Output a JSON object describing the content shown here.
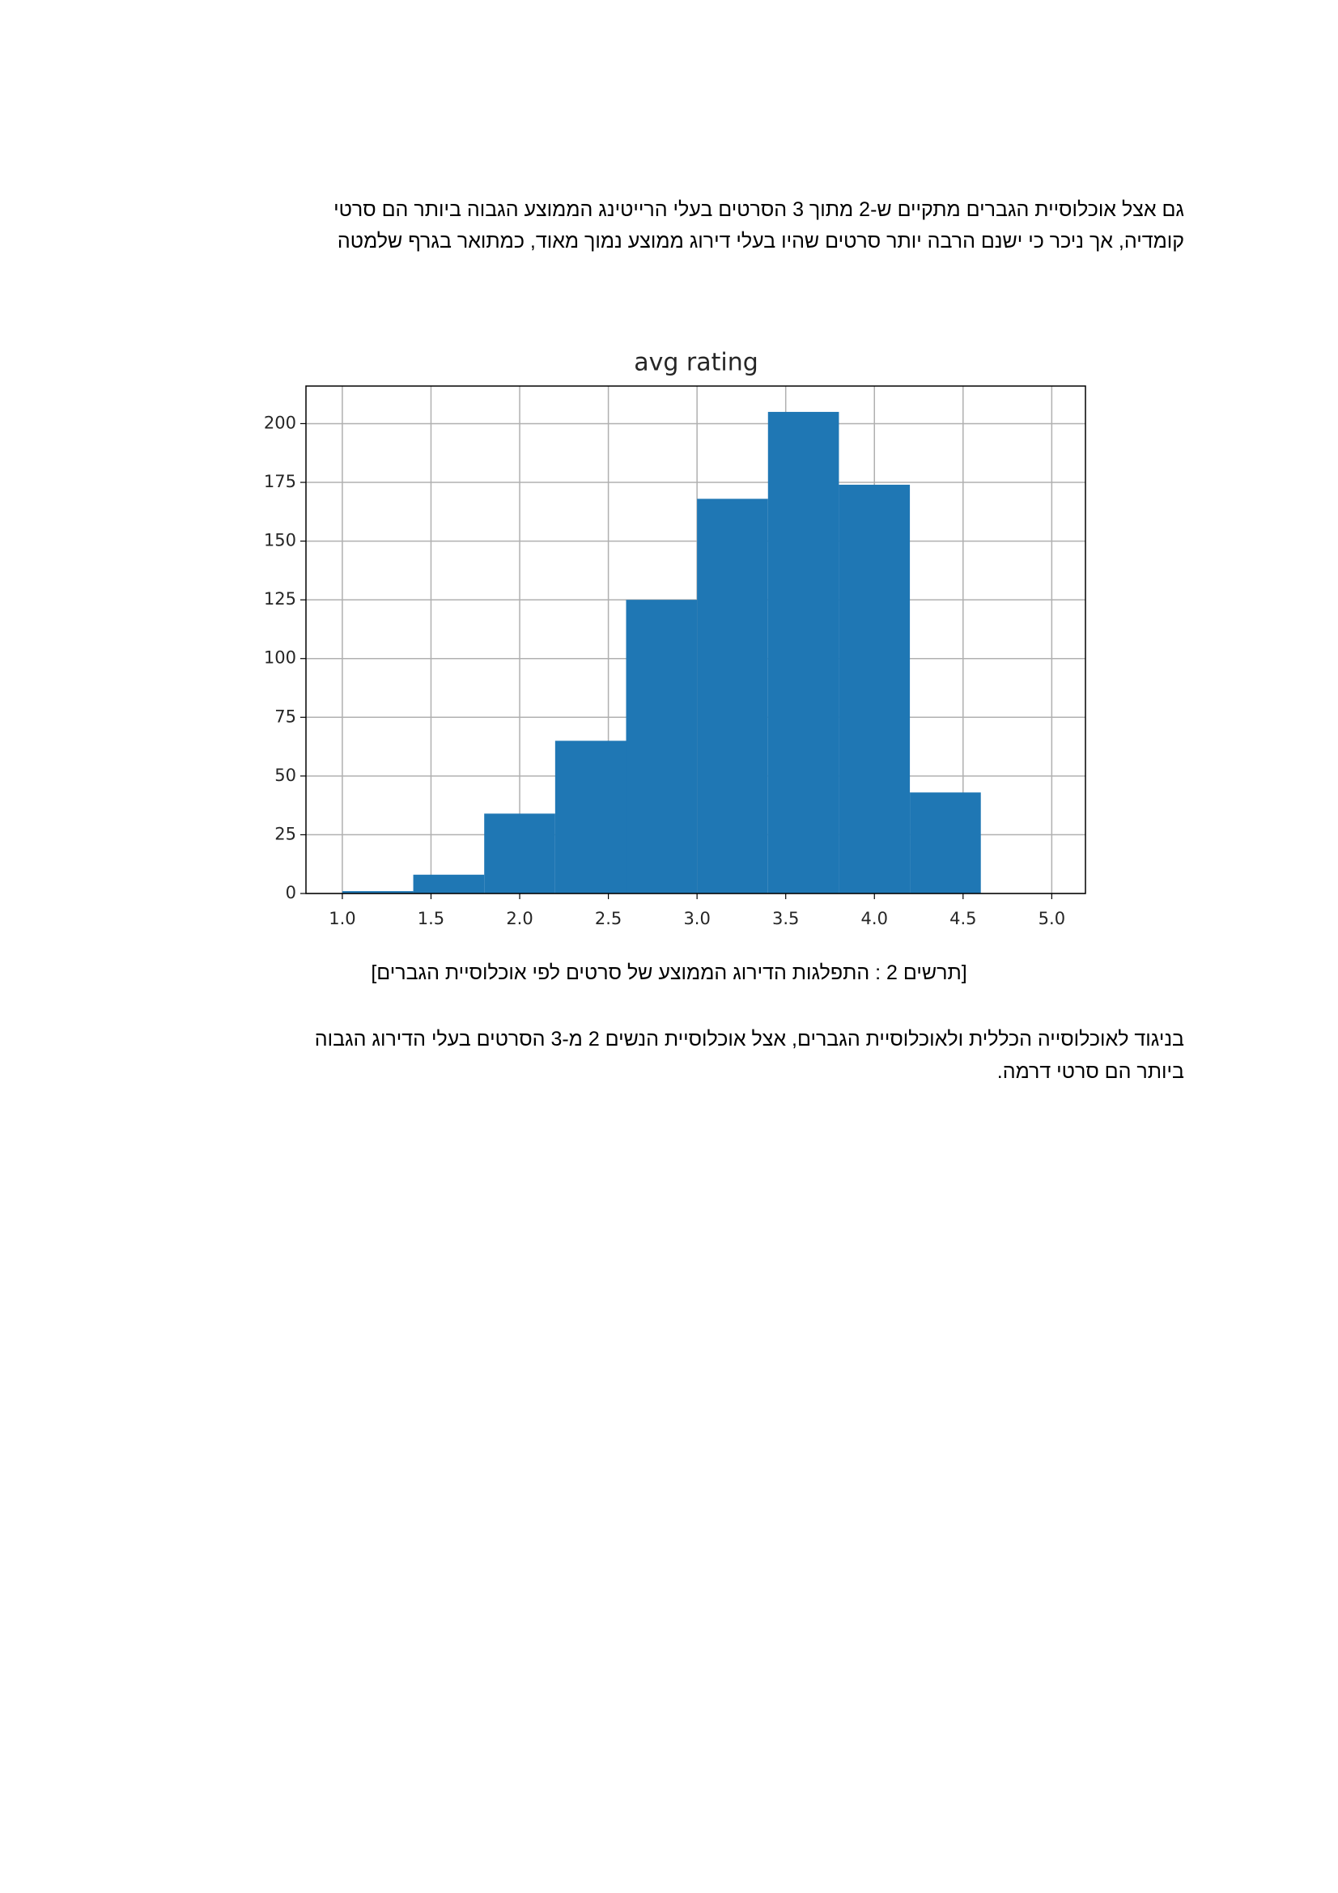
{
  "paragraphs": [
    [
      "גם אצל אוכלוסיית הגברים מתקיים ש-2 מתוך 3 הסרטים בעלי הרייטינג הממוצע הגבוה ביותר הם סרטי",
      "קומדיה, אך ניכר כי ישנם הרבה יותר סרטים שהיו בעלי דירוג ממוצע נמוך מאוד, כמתואר בגרף שלמטה"
    ],
    [
      "בניגוד לאוכלוסייה הכללית ולאוכלוסיית הגברים, אצל אוכלוסיית הנשים 2 מ-3 הסרטים בעלי הדירוג הגבוה",
      "ביותר הם סרטי דרמה."
    ]
  ],
  "caption": "[תרשים 2 : התפלגות הדירוג הממוצע של סרטים לפי אוכלוסיית הגברים]",
  "chart_data": {
    "type": "histogram",
    "title": "avg rating",
    "bins": [
      1.0,
      1.4,
      1.8,
      2.2,
      2.6,
      3.0,
      3.4,
      3.8,
      4.2,
      4.6
    ],
    "values": [
      1,
      8,
      34,
      65,
      125,
      168,
      205,
      174,
      43
    ],
    "color": "#1f77b4",
    "xlim": [
      0.795,
      5.19
    ],
    "ylim": [
      0,
      216
    ],
    "xticks": [
      {
        "value": 1,
        "label": "1.0"
      },
      1.5,
      {
        "value": 2,
        "label": "2.0"
      },
      2.5,
      {
        "value": 3,
        "label": "3.0"
      },
      3.5,
      {
        "value": 4,
        "label": "4.0"
      },
      4.5,
      {
        "value": 5,
        "label": "5.0"
      }
    ],
    "yticks": [
      0,
      25,
      50,
      75,
      100,
      125,
      150,
      175,
      200
    ],
    "grid": true
  }
}
